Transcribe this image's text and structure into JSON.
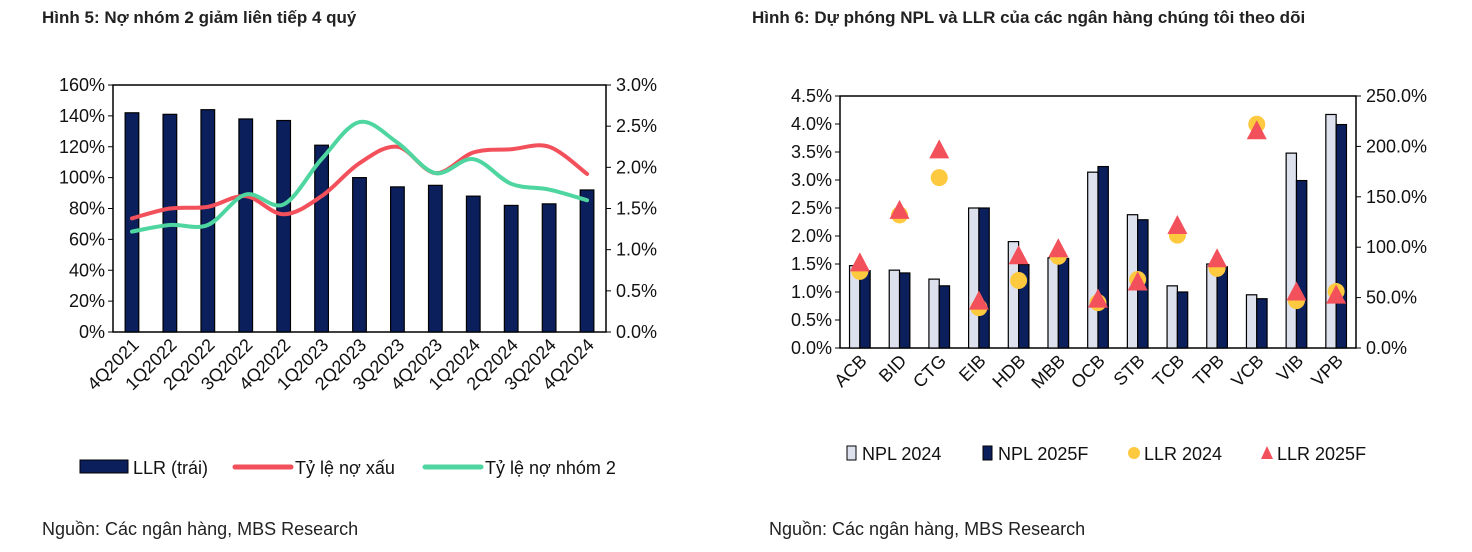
{
  "chart_data": [
    {
      "type": "bar+line",
      "title": "Hình 5: Nợ nhóm 2 giảm liên tiếp 4 quý",
      "source": "Nguồn: Các ngân hàng, MBS Research",
      "categories": [
        "4Q2021",
        "1Q2022",
        "2Q2022",
        "3Q2022",
        "4Q2022",
        "1Q2023",
        "2Q2023",
        "3Q2023",
        "4Q2023",
        "1Q2024",
        "2Q2024",
        "3Q2024",
        "4Q2024"
      ],
      "y_left": {
        "min": 0,
        "max": 160,
        "step": 20,
        "ticks": [
          "0%",
          "20%",
          "40%",
          "60%",
          "80%",
          "100%",
          "120%",
          "140%",
          "160%"
        ]
      },
      "y_right": {
        "min": 0,
        "max": 3.0,
        "step": 0.5,
        "ticks": [
          "0.0%",
          "0.5%",
          "1.0%",
          "1.5%",
          "2.0%",
          "2.5%",
          "3.0%"
        ]
      },
      "series": [
        {
          "name": "LLR (trái)",
          "kind": "bar",
          "axis": "left",
          "color": "#0b1f5c",
          "values": [
            142,
            141,
            144,
            138,
            137,
            121,
            100,
            94,
            95,
            88,
            82,
            83,
            92
          ]
        },
        {
          "name": "Tỷ lệ nợ xấu",
          "kind": "line",
          "axis": "right",
          "color": "#f2505a",
          "values": [
            1.38,
            1.5,
            1.52,
            1.65,
            1.43,
            1.65,
            2.05,
            2.25,
            1.93,
            2.18,
            2.22,
            2.25,
            1.92
          ]
        },
        {
          "name": "Tỷ lệ nợ nhóm 2",
          "kind": "line",
          "axis": "right",
          "color": "#4fd6a0",
          "values": [
            1.22,
            1.3,
            1.3,
            1.67,
            1.55,
            2.1,
            2.55,
            2.3,
            1.93,
            2.1,
            1.8,
            1.73,
            1.6
          ]
        }
      ],
      "legend_position": "bottom"
    },
    {
      "type": "bar+scatter",
      "title": "Hình 6: Dự phóng NPL và LLR của các ngân hàng chúng tôi theo dõi",
      "source": "Nguồn: Các ngân hàng, MBS Research",
      "categories": [
        "ACB",
        "BID",
        "CTG",
        "EIB",
        "HDB",
        "MBB",
        "OCB",
        "STB",
        "TCB",
        "TPB",
        "VCB",
        "VIB",
        "VPB"
      ],
      "y_left": {
        "min": 0,
        "max": 4.5,
        "step": 0.5,
        "ticks": [
          "0.0%",
          "0.5%",
          "1.0%",
          "1.5%",
          "2.0%",
          "2.5%",
          "3.0%",
          "3.5%",
          "4.0%",
          "4.5%"
        ]
      },
      "y_right": {
        "min": 0,
        "max": 250,
        "step": 50,
        "ticks": [
          "0.0%",
          "50.0%",
          "100.0%",
          "150.0%",
          "200.0%",
          "250.0%"
        ]
      },
      "series": [
        {
          "name": "NPL 2024",
          "kind": "bar",
          "axis": "left",
          "color": "#dde1ee",
          "values": [
            1.47,
            1.39,
            1.23,
            2.5,
            1.9,
            1.61,
            3.14,
            2.38,
            1.11,
            1.5,
            0.95,
            3.48,
            4.17
          ]
        },
        {
          "name": "NPL 2025F",
          "kind": "bar",
          "axis": "left",
          "color": "#0b1f5c",
          "values": [
            1.38,
            1.34,
            1.11,
            2.5,
            1.49,
            1.6,
            3.24,
            2.29,
            1.0,
            1.45,
            0.88,
            2.99,
            3.99
          ]
        },
        {
          "name": "LLR 2024",
          "kind": "circle",
          "axis": "right",
          "color": "#fdc93e",
          "values": [
            76,
            132,
            169,
            40,
            67,
            91,
            45,
            68,
            112,
            79,
            222,
            47,
            56
          ]
        },
        {
          "name": "LLR 2025F",
          "kind": "triangle",
          "axis": "right",
          "color": "#f2505a",
          "values": [
            84,
            136,
            196,
            46,
            91,
            98,
            48,
            65,
            121,
            88,
            215,
            55,
            52
          ]
        }
      ],
      "legend_position": "bottom"
    }
  ]
}
